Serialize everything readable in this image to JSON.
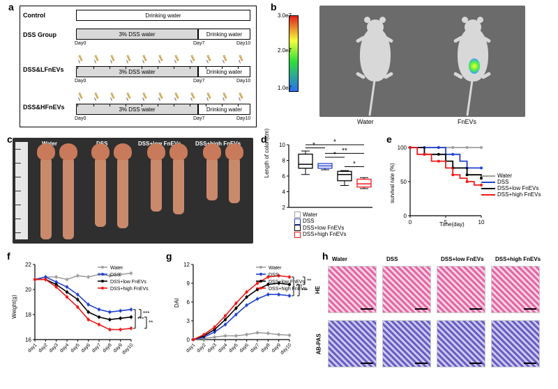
{
  "panels": {
    "a": "a",
    "b": "b",
    "c": "c",
    "d": "d",
    "e": "e",
    "f": "f",
    "g": "g",
    "h": "h"
  },
  "A": {
    "groups": [
      "Control",
      "DSS Group",
      "DSS&LFnEVs",
      "DSS&HFnEVs"
    ],
    "bar_drinking": "Drinking water",
    "bar_dss": "3% DSS  water",
    "days": [
      "Day0",
      "Day7",
      "Day10"
    ]
  },
  "B": {
    "colorbar_ticks": [
      "3.0e7",
      "2.0e7",
      "1.0e7"
    ],
    "labels": [
      "Water",
      "FnEVs"
    ]
  },
  "C": {
    "labels": [
      "Water",
      "DSS",
      "DSS+low FnEVs",
      "DSS+high FnEVs"
    ],
    "colon_heights": [
      118,
      118,
      100,
      102,
      78,
      82,
      62,
      66
    ]
  },
  "D": {
    "ylabel": "Length of colon(cm)",
    "ylim": [
      2,
      10
    ],
    "ytick_step": 2,
    "groups": [
      "Water",
      "DSS",
      "DSS+low FnEVs",
      "DSS+high FnEVs"
    ],
    "colors": [
      "#ffffff",
      "#2040d0",
      "#000000",
      "#f01818"
    ],
    "box": [
      {
        "min": 6.2,
        "q1": 7.0,
        "med": 7.5,
        "q3": 8.8,
        "max": 9.2
      },
      {
        "min": 6.8,
        "q1": 7.0,
        "med": 7.3,
        "q3": 7.6,
        "max": 7.6
      },
      {
        "min": 4.8,
        "q1": 5.4,
        "med": 6.2,
        "q3": 6.6,
        "max": 6.7
      },
      {
        "min": 4.4,
        "q1": 4.6,
        "med": 5.0,
        "q3": 5.6,
        "max": 5.8
      }
    ],
    "sig_star1": "*",
    "sig_star2": "**"
  },
  "E": {
    "ylabel": "survival rate (%)",
    "xlabel": "Time(day)",
    "ylim": [
      0,
      100
    ],
    "ytick_step": 50,
    "xlim": [
      0,
      10
    ],
    "xtick_step": 5,
    "series": [
      {
        "name": "Water",
        "color": "#9e9e9e",
        "marker": "triangle",
        "y": [
          100,
          100,
          100,
          100,
          100,
          100,
          100,
          100,
          100,
          100,
          100
        ]
      },
      {
        "name": "DSS",
        "color": "#2040d0",
        "marker": "circle",
        "y": [
          100,
          100,
          100,
          100,
          100,
          90,
          90,
          80,
          70,
          70,
          70
        ]
      },
      {
        "name": "DSS+low FnEVs",
        "color": "#000000",
        "marker": "square",
        "y": [
          100,
          100,
          90,
          90,
          90,
          80,
          70,
          70,
          60,
          60,
          55
        ]
      },
      {
        "name": "DSS+high FnEVs",
        "color": "#f01818",
        "marker": "circle",
        "y": [
          100,
          90,
          90,
          80,
          80,
          70,
          60,
          55,
          50,
          45,
          45
        ]
      }
    ]
  },
  "F": {
    "ylabel": "Weight(g)",
    "ylim": [
      16,
      22
    ],
    "ytick_step": 2,
    "x": [
      "day1",
      "day2",
      "day3",
      "day4",
      "day5",
      "day6",
      "day7",
      "day8",
      "day9",
      "day10"
    ],
    "series": [
      {
        "name": "Water",
        "color": "#9e9e9e",
        "y": [
          20.8,
          21.0,
          21.0,
          20.8,
          21.1,
          21.0,
          21.2,
          21.1,
          21.2,
          21.3
        ]
      },
      {
        "name": "DSS",
        "color": "#2040d0",
        "y": [
          20.8,
          21.0,
          20.6,
          20.2,
          19.6,
          18.8,
          18.4,
          18.2,
          18.3,
          18.4
        ]
      },
      {
        "name": "DSS+low FnEVs",
        "color": "#000000",
        "y": [
          20.8,
          20.8,
          20.4,
          19.8,
          19.2,
          18.2,
          17.8,
          17.6,
          17.7,
          17.8
        ]
      },
      {
        "name": "DSS+high FnEVs",
        "color": "#f01818",
        "y": [
          20.8,
          20.8,
          20.2,
          19.4,
          18.6,
          17.6,
          17.2,
          16.8,
          16.8,
          16.9
        ]
      }
    ],
    "sig": [
      "***",
      "***",
      "**"
    ]
  },
  "G": {
    "ylabel": "DAI",
    "ylim": [
      0,
      12
    ],
    "ytick_step": 3,
    "x": [
      "day1",
      "day2",
      "day3",
      "day4",
      "day5",
      "day6",
      "day7",
      "day8",
      "day9",
      "day10"
    ],
    "series": [
      {
        "name": "Water",
        "color": "#9e9e9e",
        "y": [
          0,
          0.2,
          0.4,
          0.6,
          0.6,
          0.8,
          1.1,
          1.0,
          0.8,
          0.7
        ]
      },
      {
        "name": "DSS",
        "color": "#2040d0",
        "y": [
          0,
          0.4,
          1.2,
          2.4,
          4.0,
          5.5,
          6.5,
          7.2,
          7.2,
          7.0
        ]
      },
      {
        "name": "DSS+low FnEVs",
        "color": "#000000",
        "y": [
          0,
          0.6,
          1.6,
          3.2,
          5.0,
          6.8,
          8.0,
          8.8,
          9.0,
          8.8
        ]
      },
      {
        "name": "DSS+high FnEVs",
        "color": "#f01818",
        "y": [
          0,
          0.8,
          2.0,
          3.8,
          5.8,
          7.6,
          9.0,
          10.0,
          10.2,
          10.0
        ]
      }
    ],
    "sig": [
      "***",
      "***",
      "**"
    ]
  },
  "H": {
    "cols": [
      "Water",
      "DSS",
      "DSS+low FnEVs",
      "DSS+high FnEVs"
    ],
    "rows": [
      "HE",
      "AB-PAS"
    ],
    "row_colors": [
      "#e766a3",
      "#6a5fc4"
    ]
  },
  "legend": {
    "items": [
      {
        "label": "Water",
        "color": "#9e9e9e"
      },
      {
        "label": "DSS",
        "color": "#2040d0"
      },
      {
        "label": "DSS+low FnEVs",
        "color": "#000000"
      },
      {
        "label": "DSS+high FnEVs",
        "color": "#f01818"
      }
    ]
  }
}
